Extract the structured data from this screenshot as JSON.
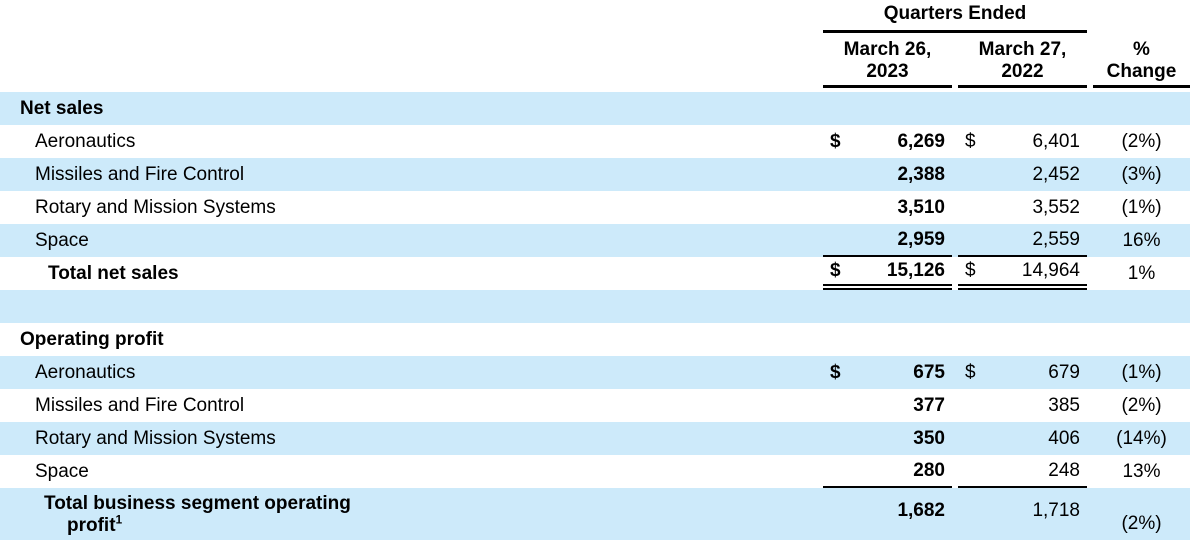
{
  "colors": {
    "row_highlight": "#cdeafa",
    "text": "#000000",
    "rule": "#000000"
  },
  "header": {
    "group_title": "Quarters Ended",
    "col_2023": {
      "line1": "March 26,",
      "line2": "2023"
    },
    "col_2022": {
      "line1": "March 27,",
      "line2": "2022"
    },
    "col_pct": {
      "line1": "%",
      "line2": "Change"
    }
  },
  "net_sales": {
    "title": "Net sales",
    "rows": [
      {
        "label": "Aeronautics",
        "cur1": "$",
        "v2023": "6,269",
        "cur2": "$",
        "v2022": "6,401",
        "pct": "(2%)"
      },
      {
        "label": "Missiles and Fire Control",
        "v2023": "2,388",
        "v2022": "2,452",
        "pct": "(3%)"
      },
      {
        "label": "Rotary and Mission Systems",
        "v2023": "3,510",
        "v2022": "3,552",
        "pct": "(1%)"
      },
      {
        "label": "Space",
        "v2023": "2,959",
        "v2022": "2,559",
        "pct": "16%"
      }
    ],
    "total": {
      "label": "Total net sales",
      "cur1": "$",
      "v2023": "15,126",
      "cur2": "$",
      "v2022": "14,964",
      "pct": "1%"
    }
  },
  "operating_profit": {
    "title": "Operating profit",
    "rows": [
      {
        "label": "Aeronautics",
        "cur1": "$",
        "v2023": "675",
        "cur2": "$",
        "v2022": "679",
        "pct": "(1%)"
      },
      {
        "label": "Missiles and Fire Control",
        "v2023": "377",
        "v2022": "385",
        "pct": "(2%)"
      },
      {
        "label": "Rotary and Mission Systems",
        "v2023": "350",
        "v2022": "406",
        "pct": "(14%)"
      },
      {
        "label": "Space",
        "v2023": "280",
        "v2022": "248",
        "pct": "13%"
      }
    ],
    "total": {
      "label_line1": "Total business segment operating",
      "label_line2": "profit",
      "footnote": "1",
      "v2023": "1,682",
      "v2022": "1,718",
      "pct": "(2%)"
    }
  }
}
